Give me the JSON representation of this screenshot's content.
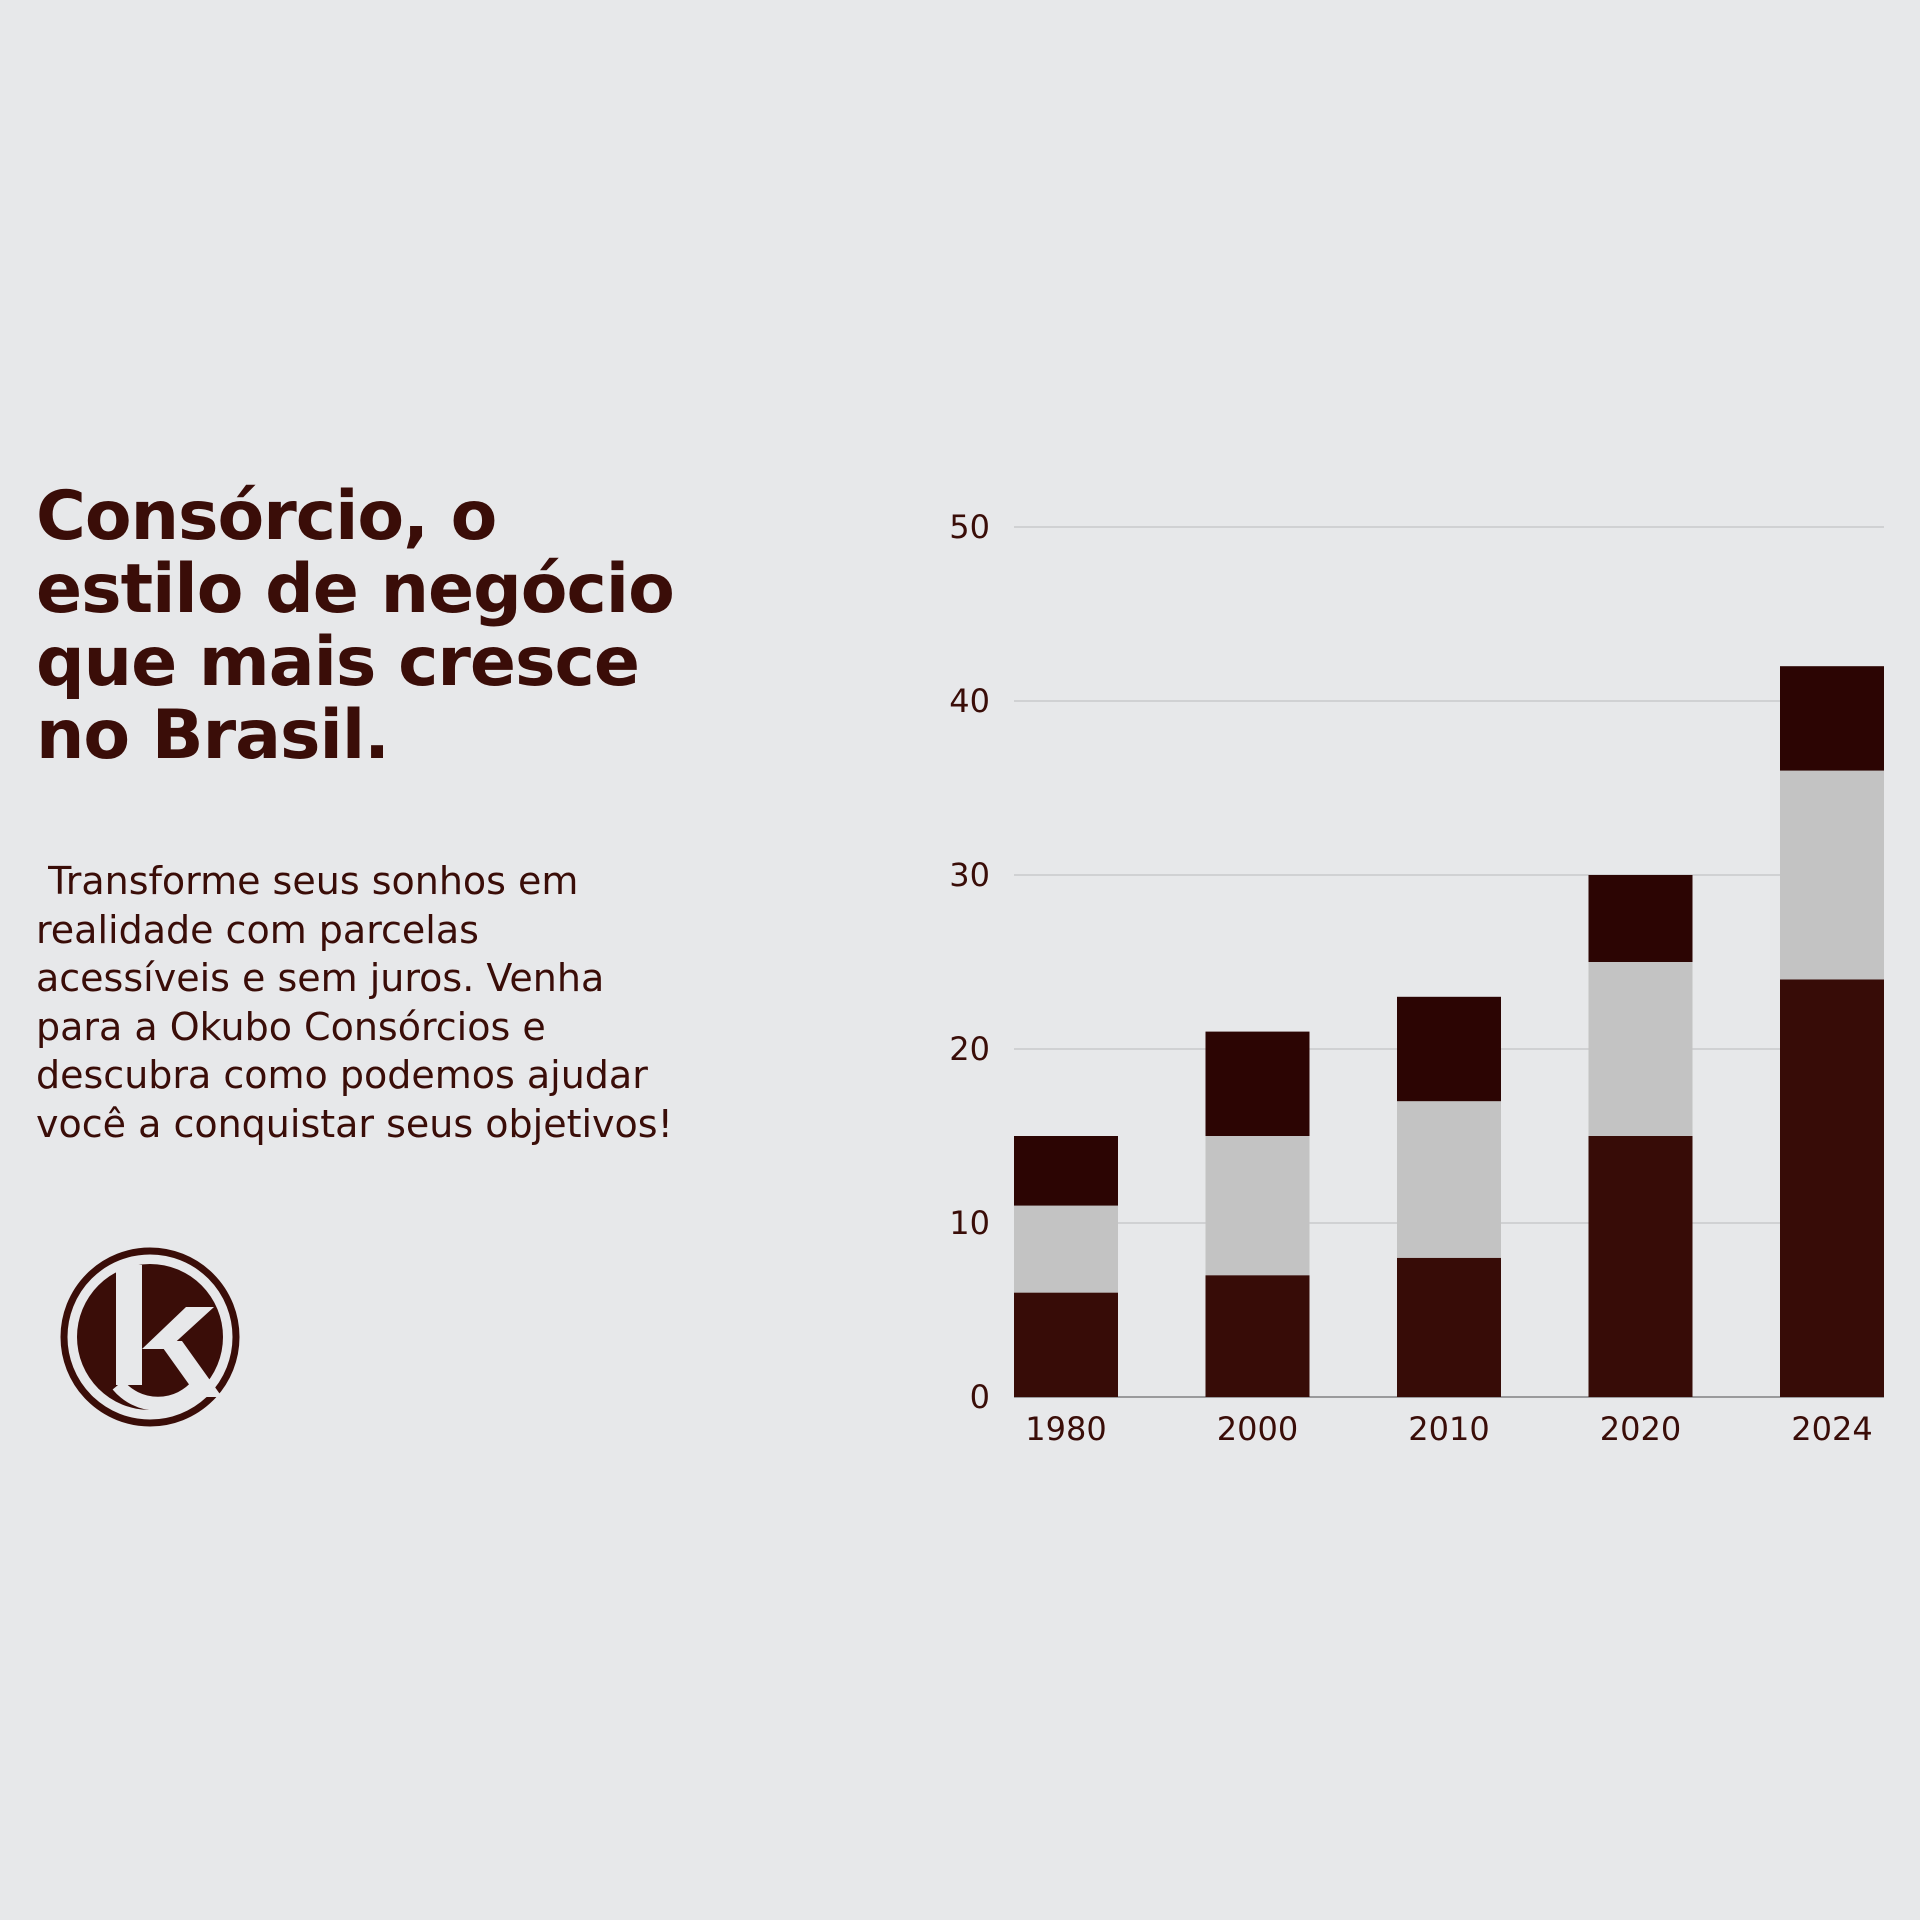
{
  "headline": {
    "lines": [
      "Consórcio, o",
      "estilo de negócio",
      "que mais cresce",
      "no Brasil."
    ]
  },
  "body": {
    "lines": [
      " Transforme seus sonhos em",
      "realidade com parcelas",
      "acessíveis e sem juros. Venha",
      "para a Okubo Consórcios e",
      "descubra como podemos ajudar",
      "você a conquistar seus objetivos!"
    ]
  },
  "logo": {
    "icon": "okubo-k-logo-icon",
    "letter": "k"
  },
  "colors": {
    "background": "#e7e8ea",
    "text": "#3a0d08",
    "series_bottom": "#370c07",
    "series_middle": "#c3c3c3",
    "series_top": "#2c0503",
    "gridline": "#d0d1d3"
  },
  "chart_data": {
    "type": "bar",
    "stacked": true,
    "categories": [
      "1980",
      "2000",
      "2010",
      "2020",
      "2024"
    ],
    "series": [
      {
        "values": [
          6,
          7,
          8,
          15,
          24
        ],
        "color": "#370c07"
      },
      {
        "values": [
          5,
          8,
          9,
          10,
          12
        ],
        "color": "#c3c3c3"
      },
      {
        "values": [
          4,
          6,
          6,
          5,
          6
        ],
        "color": "#2c0503"
      }
    ],
    "ylim": [
      0,
      50
    ],
    "yticks": [
      "0",
      "10",
      "20",
      "30",
      "40",
      "50"
    ],
    "grid": true,
    "legend": "none",
    "title": "",
    "xlabel": "",
    "ylabel": ""
  }
}
